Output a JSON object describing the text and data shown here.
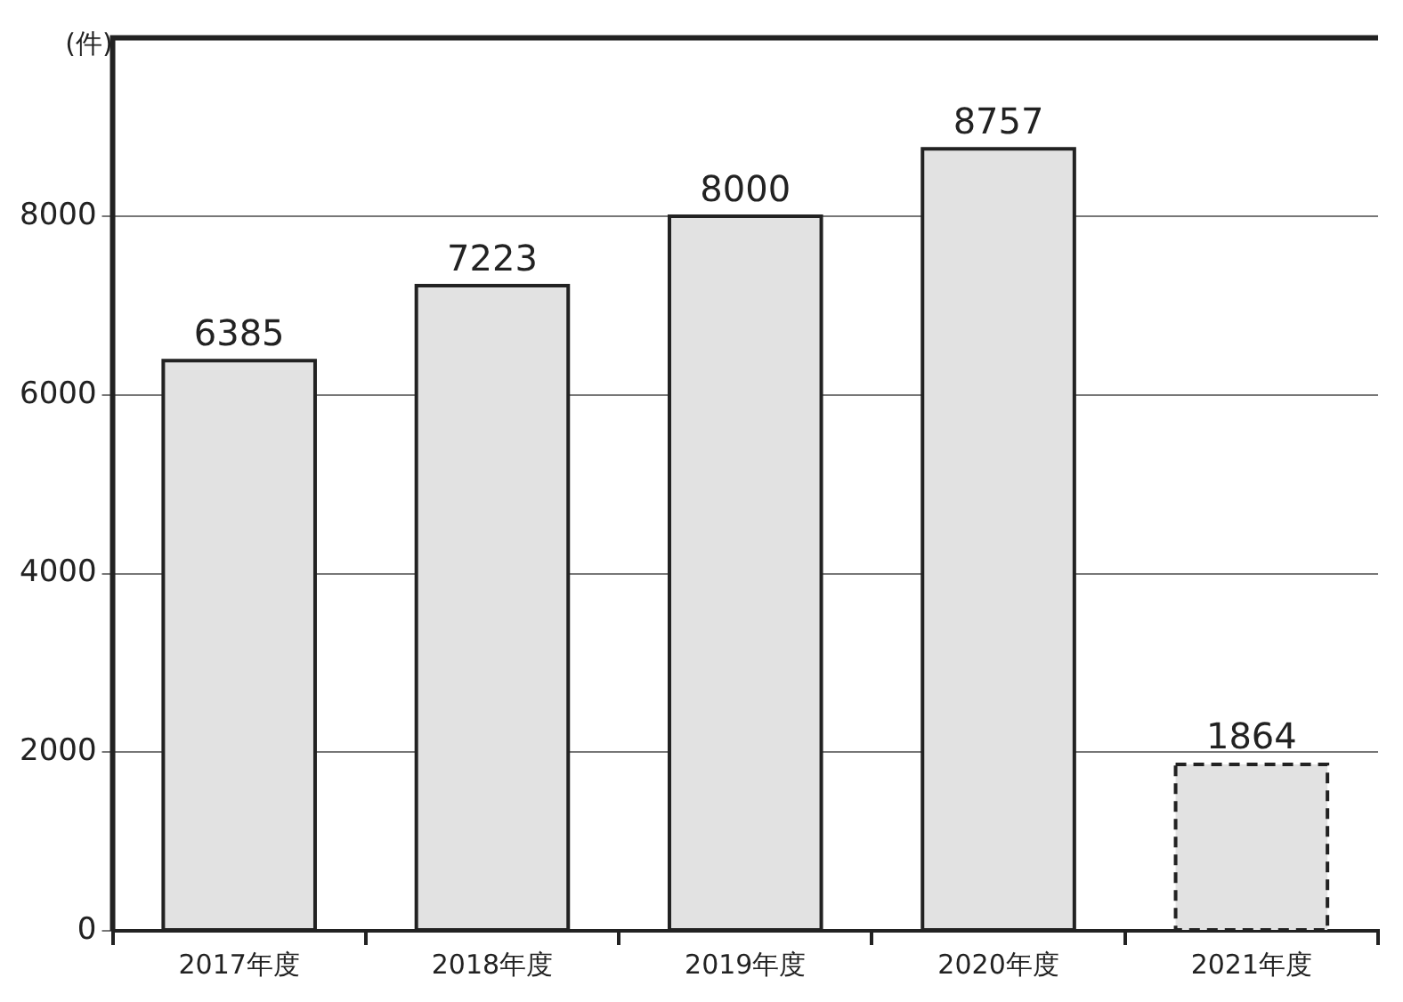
{
  "chart_data": {
    "type": "bar",
    "ylabel": "(件)",
    "categories": [
      "2017年度",
      "2018年度",
      "2019年度",
      "2020年度",
      "2021年度"
    ],
    "series": [
      {
        "color": "#e2e2e2",
        "values": [
          6385,
          7223,
          8000,
          8757,
          null
        ]
      },
      {
        "color": "#e2e2e2",
        "values": [
          null,
          null,
          null,
          null,
          1864
        ],
        "line_style": "dashed"
      }
    ],
    "ylim": [
      0,
      10000
    ],
    "yticks": [
      0,
      2000,
      4000,
      6000,
      8000
    ],
    "grid": "y",
    "data_labels": true
  }
}
